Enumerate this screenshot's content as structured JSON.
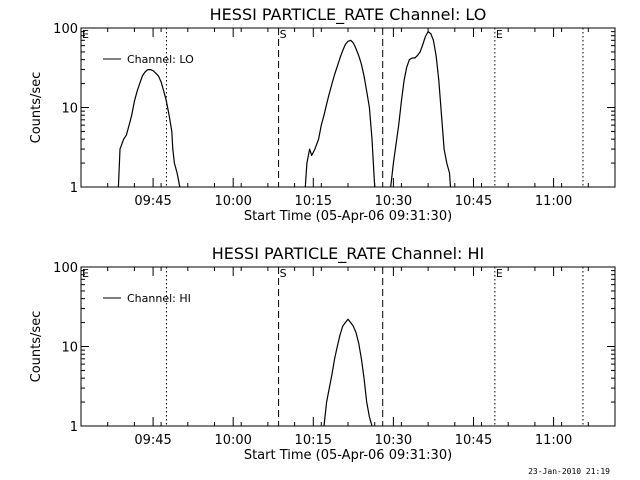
{
  "footer": {
    "timestamp": "23-Jan-2010 21:19"
  },
  "chart_data": [
    {
      "type": "line",
      "title": "HESSI PARTICLE_RATE Channel: LO",
      "xlabel": "Start Time (05-Apr-06 09:31:30)",
      "ylabel": "Counts/sec",
      "yscale": "log",
      "ylim": [
        1,
        100
      ],
      "xlim_minutes": [
        0,
        100
      ],
      "x_tick_labels": [
        "09:45",
        "10:00",
        "10:15",
        "10:30",
        "10:45",
        "11:00"
      ],
      "x_ticks_minutes": [
        13.5,
        28.5,
        43.5,
        58.5,
        73.5,
        88.5
      ],
      "y_tick_labels": [
        "1",
        "10",
        "100"
      ],
      "y_ticks": [
        1,
        10,
        100
      ],
      "legend": "Channel: LO",
      "legend_position": "top-left",
      "markers": {
        "s_label": "S",
        "e_left_label": "E",
        "e_right_label": "E",
        "s_minute": 37.0,
        "e_minute": 77.5,
        "dashed_minutes": [
          37.0,
          56.5
        ],
        "dotted_minutes": [
          16.0,
          77.5,
          94.0
        ]
      },
      "series": [
        {
          "x": [
            7.0,
            7.3,
            8.0,
            8.5,
            9.0,
            9.5,
            10.0,
            10.5,
            11.0,
            11.5,
            12.0,
            12.5,
            13.0,
            13.5,
            14.0,
            14.5,
            15.0,
            15.5,
            16.0,
            16.5,
            17.0,
            17.2,
            17.5,
            18.0,
            18.5
          ],
          "y": [
            1,
            3,
            4,
            4.5,
            6,
            8,
            12,
            16,
            20,
            25,
            28,
            30,
            30,
            29,
            27,
            25,
            21,
            16,
            12,
            8,
            5,
            3,
            2,
            1.5,
            1
          ]
        },
        {
          "x": [
            42.0,
            42.3,
            42.8,
            43.2,
            43.8,
            44.5,
            45.0,
            45.5,
            46.0,
            46.5,
            47.0,
            47.5,
            48.0,
            48.5,
            49.0,
            49.5,
            50.0,
            50.5,
            51.0,
            51.5,
            52.0,
            52.5,
            53.0,
            53.5,
            54.0,
            54.5,
            55.0
          ],
          "y": [
            1,
            2,
            3,
            2.5,
            3,
            4,
            6,
            8,
            11,
            15,
            20,
            26,
            33,
            42,
            52,
            62,
            68,
            70,
            65,
            55,
            45,
            35,
            25,
            16,
            10,
            4,
            1
          ]
        },
        {
          "x": [
            58.0,
            58.5,
            59.0,
            59.5,
            60.0,
            60.5,
            61.0,
            61.5,
            62.0,
            62.5,
            63.0,
            63.5,
            64.0,
            64.5,
            65.0,
            65.5,
            66.0,
            66.5,
            67.0,
            67.5,
            68.0,
            68.5,
            69.0,
            69.2
          ],
          "y": [
            1,
            2,
            3.5,
            6,
            12,
            22,
            32,
            40,
            42,
            42,
            45,
            50,
            62,
            78,
            90,
            85,
            70,
            45,
            22,
            8,
            3,
            2,
            1.5,
            1
          ]
        }
      ]
    },
    {
      "type": "line",
      "title": "HESSI PARTICLE_RATE Channel: HI",
      "xlabel": "Start Time (05-Apr-06 09:31:30)",
      "ylabel": "Counts/sec",
      "yscale": "log",
      "ylim": [
        1,
        100
      ],
      "xlim_minutes": [
        0,
        100
      ],
      "x_tick_labels": [
        "09:45",
        "10:00",
        "10:15",
        "10:30",
        "10:45",
        "11:00"
      ],
      "x_ticks_minutes": [
        13.5,
        28.5,
        43.5,
        58.5,
        73.5,
        88.5
      ],
      "y_tick_labels": [
        "1",
        "10",
        "100"
      ],
      "y_ticks": [
        1,
        10,
        100
      ],
      "legend": "Channel: HI",
      "legend_position": "top-left",
      "markers": {
        "s_label": "S",
        "e_left_label": "E",
        "e_right_label": "E",
        "s_minute": 37.0,
        "e_minute": 77.5,
        "dashed_minutes": [
          37.0,
          56.5
        ],
        "dotted_minutes": [
          16.0,
          77.5,
          94.0
        ]
      },
      "series": [
        {
          "x": [
            45.5,
            46.0,
            46.5,
            47.0,
            47.5,
            48.0,
            48.5,
            49.0,
            49.5,
            50.0,
            50.5,
            51.0,
            51.5,
            52.0,
            52.5,
            53.0,
            53.5,
            54.0,
            54.5
          ],
          "y": [
            1,
            2,
            3,
            4.5,
            7,
            10,
            14,
            18,
            20,
            22,
            20,
            18,
            15,
            11,
            7,
            4,
            2,
            1.3,
            1
          ]
        }
      ]
    }
  ]
}
